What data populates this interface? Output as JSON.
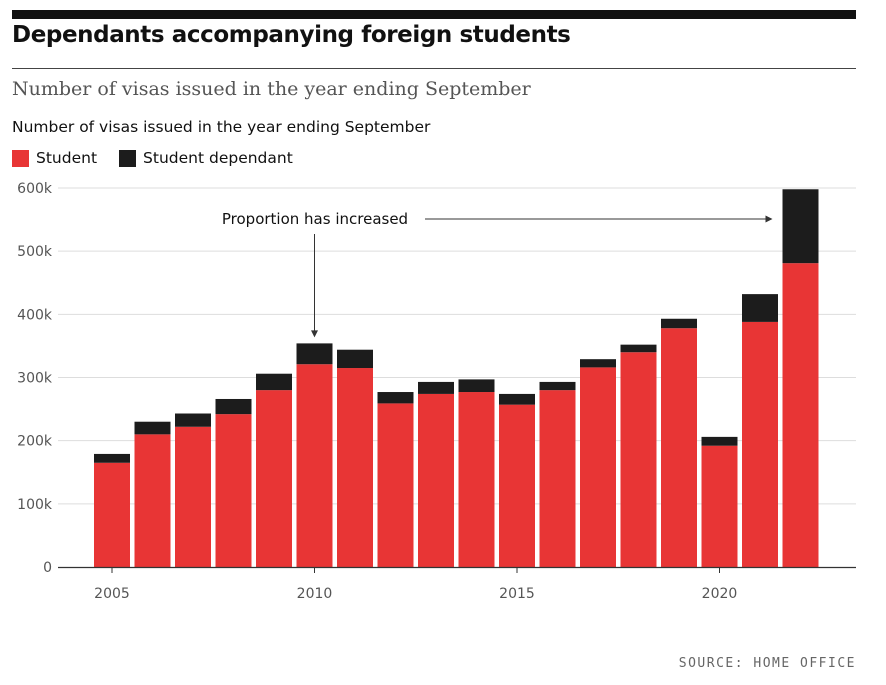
{
  "header": {
    "title": "Dependants accompanying foreign students",
    "subtitle": "Number of visas issued in the year ending September"
  },
  "footer": {
    "source": "SOURCE: HOME OFFICE"
  },
  "colors": {
    "student": "#e83535",
    "student_dependant": "#1c1c1c",
    "grid": "#dddddd",
    "axis": "#333333",
    "text": "#111111"
  },
  "chart_data": {
    "type": "bar",
    "stacked": true,
    "title": "Number of visas issued in the year ending September",
    "xlabel": "",
    "ylabel": "",
    "years": [
      2005,
      2006,
      2007,
      2008,
      2009,
      2010,
      2011,
      2012,
      2013,
      2014,
      2015,
      2016,
      2017,
      2018,
      2019,
      2020,
      2021,
      2022
    ],
    "series": [
      {
        "name": "Student",
        "color": "#e83535",
        "values": [
          165000,
          210000,
          222000,
          242000,
          280000,
          321000,
          315000,
          259000,
          274000,
          277000,
          257000,
          280000,
          316000,
          340000,
          378000,
          192000,
          388000,
          481000
        ]
      },
      {
        "name": "Student dependant",
        "color": "#1c1c1c",
        "values": [
          14000,
          20000,
          21000,
          24000,
          26000,
          33000,
          29000,
          18000,
          19000,
          20000,
          17000,
          13000,
          13000,
          12000,
          15000,
          14000,
          44000,
          117000
        ]
      }
    ],
    "ylim": [
      0,
      600000
    ],
    "y_ticks": [
      0,
      100000,
      200000,
      300000,
      400000,
      500000,
      600000
    ],
    "y_tick_labels": [
      "0",
      "100k",
      "200k",
      "300k",
      "400k",
      "500k",
      "600k"
    ],
    "x_ticks": [
      2005,
      2010,
      2015,
      2020
    ],
    "x_tick_labels": [
      "2005",
      "2010",
      "2015",
      "2020"
    ],
    "legend": {
      "placement": "top-left",
      "entries": [
        "Student",
        "Student dependant"
      ]
    },
    "grid": true,
    "annotations": [
      {
        "text": "Proportion has increased",
        "points_to": [
          2010,
          2022
        ]
      }
    ]
  }
}
